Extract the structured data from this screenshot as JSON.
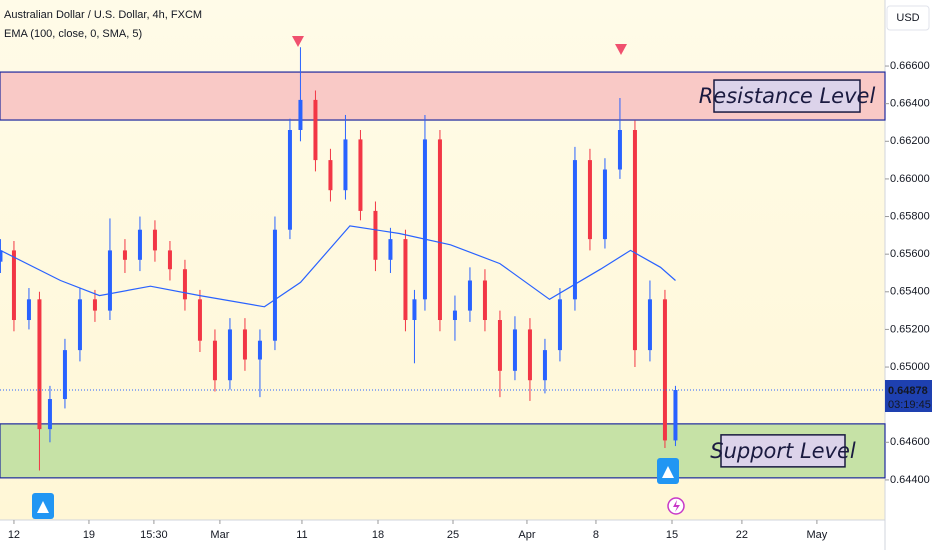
{
  "chart_data": {
    "type": "candlestick",
    "title": "Australian Dollar / U.S. Dollar, 4h, FXCM",
    "subtitle": "EMA (100, close, 0, SMA, 5)",
    "currency": "USD",
    "countdown": "03:19:45",
    "last_price": 0.64878,
    "up_color": "#2962ff",
    "down_color": "#f23645",
    "x": [
      -0.9,
      0,
      1,
      1.7,
      2.4,
      3.4,
      4.4,
      5.4,
      6.4,
      7.4,
      8.4,
      9.4,
      10.4,
      11.4,
      12.4,
      13.4,
      14.4,
      15.4,
      16.4,
      17.4,
      18.4,
      19.1,
      20.1,
      21.1,
      22.1,
      23.1,
      24.1,
      25.1,
      26.1,
      26.7,
      27.4,
      28.4,
      29.4,
      30.4,
      31.4,
      32.4,
      33.4,
      34.4,
      35.4,
      36.4,
      37.4,
      38.4,
      39.4,
      40.4,
      41.4,
      42.4,
      43.4,
      44.1
    ],
    "open": [
      0.6556,
      0.6562,
      0.6525,
      0.6536,
      0.6467,
      0.6483,
      0.6509,
      0.6536,
      0.653,
      0.6562,
      0.6557,
      0.6573,
      0.6562,
      0.6552,
      0.6536,
      0.6514,
      0.6493,
      0.652,
      0.6504,
      0.6514,
      0.6573,
      0.6626,
      0.6642,
      0.661,
      0.6594,
      0.6621,
      0.6583,
      0.6557,
      0.6568,
      0.6525,
      0.6536,
      0.6621,
      0.6525,
      0.653,
      0.6546,
      0.6525,
      0.6498,
      0.652,
      0.6493,
      0.6509,
      0.6536,
      0.661,
      0.6568,
      0.6605,
      0.6626,
      0.6509,
      0.6536,
      0.6461
    ],
    "high": [
      0.6568,
      0.6567,
      0.6542,
      0.654,
      0.649,
      0.6515,
      0.6542,
      0.6541,
      0.6579,
      0.6568,
      0.658,
      0.6578,
      0.6567,
      0.6557,
      0.6541,
      0.652,
      0.6526,
      0.6526,
      0.652,
      0.658,
      0.6632,
      0.667,
      0.6647,
      0.6616,
      0.6634,
      0.6626,
      0.6588,
      0.6574,
      0.6573,
      0.6541,
      0.6634,
      0.6626,
      0.6538,
      0.6553,
      0.6552,
      0.653,
      0.6527,
      0.6526,
      0.6515,
      0.6542,
      0.6617,
      0.6616,
      0.6611,
      0.6643,
      0.6631,
      0.6546,
      0.6541,
      0.649
    ],
    "low": [
      0.655,
      0.6519,
      0.652,
      0.6445,
      0.646,
      0.6478,
      0.6503,
      0.6524,
      0.6525,
      0.655,
      0.6551,
      0.6556,
      0.6546,
      0.653,
      0.6508,
      0.6487,
      0.6488,
      0.6498,
      0.6484,
      0.6509,
      0.6568,
      0.662,
      0.6604,
      0.6588,
      0.6589,
      0.6578,
      0.6551,
      0.655,
      0.6519,
      0.6502,
      0.653,
      0.6519,
      0.6514,
      0.6524,
      0.6519,
      0.6484,
      0.6493,
      0.6482,
      0.6486,
      0.6503,
      0.653,
      0.6562,
      0.6563,
      0.66,
      0.65,
      0.6503,
      0.6457,
      0.6458
    ],
    "close": [
      0.6562,
      0.6525,
      0.6536,
      0.6467,
      0.6483,
      0.6509,
      0.6536,
      0.653,
      0.6562,
      0.6557,
      0.6573,
      0.6562,
      0.6552,
      0.6536,
      0.6514,
      0.6493,
      0.652,
      0.6504,
      0.6514,
      0.6573,
      0.6626,
      0.6642,
      0.661,
      0.6594,
      0.6621,
      0.6583,
      0.6557,
      0.6568,
      0.6525,
      0.6536,
      0.6621,
      0.6525,
      0.653,
      0.6546,
      0.6525,
      0.6498,
      0.652,
      0.6493,
      0.6509,
      0.6536,
      0.661,
      0.6568,
      0.6605,
      0.6626,
      0.6509,
      0.6536,
      0.6461,
      0.64878
    ],
    "ema": {
      "color": "#2962ff",
      "x": [
        -0.9,
        3.1,
        5.7,
        9.1,
        12.4,
        16.7,
        19.1,
        22.4,
        25.7,
        29.1,
        32.4,
        35.7,
        39.1,
        41.1,
        43.1,
        44.1
      ],
      "values": [
        0.6562,
        0.6546,
        0.6538,
        0.6543,
        0.6538,
        0.6532,
        0.6545,
        0.6575,
        0.6571,
        0.6565,
        0.6555,
        0.6536,
        0.6552,
        0.6562,
        0.6553,
        0.6546
      ]
    },
    "zones": [
      {
        "name": "Resistance Level",
        "color": "#f9c9c6",
        "border": "#1e2a9e",
        "top": 0.66568,
        "bottom": 0.66313
      },
      {
        "name": "Support Level",
        "color": "#c6e2a6",
        "border": "#1e2a9e",
        "top": 0.64698,
        "bottom": 0.64411
      }
    ],
    "xlim": [
      -0.93,
      58.07
    ],
    "ylim": [
      0.64187,
      0.66951
    ],
    "xticks": [
      {
        "value": 0,
        "label": "12"
      },
      {
        "value": 5,
        "label": "19"
      },
      {
        "value": 9.33,
        "label": "15:30"
      },
      {
        "value": 13.73,
        "label": "Mar"
      },
      {
        "value": 19.2,
        "label": "11"
      },
      {
        "value": 24.27,
        "label": "18"
      },
      {
        "value": 29.27,
        "label": "25"
      },
      {
        "value": 34.2,
        "label": "Apr"
      },
      {
        "value": 38.8,
        "label": "8"
      },
      {
        "value": 43.87,
        "label": "15"
      },
      {
        "value": 48.53,
        "label": "22"
      },
      {
        "value": 53.53,
        "label": "May"
      }
    ],
    "yticks": [
      {
        "value": 0.666,
        "label": "0.66600"
      },
      {
        "value": 0.664,
        "label": "0.66400"
      },
      {
        "value": 0.662,
        "label": "0.66200"
      },
      {
        "value": 0.66,
        "label": "0.66000"
      },
      {
        "value": 0.658,
        "label": "0.65800"
      },
      {
        "value": 0.656,
        "label": "0.65600"
      },
      {
        "value": 0.654,
        "label": "0.65400"
      },
      {
        "value": 0.652,
        "label": "0.65200"
      },
      {
        "value": 0.65,
        "label": "0.65000"
      },
      {
        "value": 0.646,
        "label": "0.64600"
      },
      {
        "value": 0.644,
        "label": "0.64400"
      }
    ]
  }
}
